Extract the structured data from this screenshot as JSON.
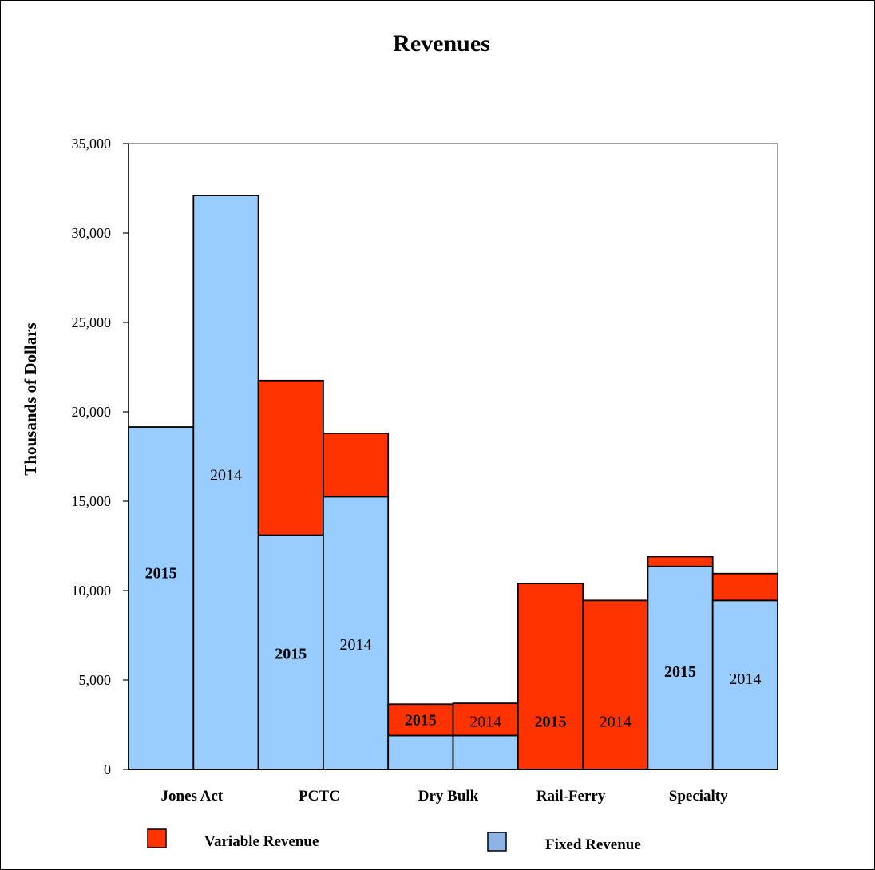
{
  "chart_data": {
    "type": "bar",
    "stacked": true,
    "title": "Revenues",
    "ylabel": "Thousands of Dollars",
    "ylim": [
      0,
      35000
    ],
    "yticks": [
      0,
      5000,
      10000,
      15000,
      20000,
      25000,
      30000,
      35000
    ],
    "ytick_labels": [
      "0",
      "5,000",
      "10,000",
      "15,000",
      "20,000",
      "25,000",
      "30,000",
      "35,000"
    ],
    "categories": [
      "Jones Act",
      "PCTC",
      "Dry Bulk",
      "Rail-Ferry",
      "Specialty"
    ],
    "bars": [
      {
        "category": "Jones Act",
        "year_label": "2015",
        "fixed": 19150,
        "variable": 0,
        "label_y": 11000,
        "bold": true
      },
      {
        "category": "Jones Act",
        "year_label": "2014",
        "fixed": 32100,
        "variable": 0,
        "label_y": 16500,
        "bold": false
      },
      {
        "category": "PCTC",
        "year_label": "2015",
        "fixed": 13100,
        "variable": 8650,
        "label_y": 6500,
        "bold": true
      },
      {
        "category": "PCTC",
        "year_label": "2014",
        "fixed": 15250,
        "variable": 3550,
        "label_y": 7000,
        "bold": false
      },
      {
        "category": "Dry Bulk",
        "year_label": "2015",
        "fixed": 1900,
        "variable": 1750,
        "label_y": 2800,
        "bold": true
      },
      {
        "category": "Dry Bulk",
        "year_label": "2014",
        "fixed": 1900,
        "variable": 1800,
        "label_y": 2700,
        "bold": false
      },
      {
        "category": "Rail-Ferry",
        "year_label": "2015",
        "fixed": 0,
        "variable": 10400,
        "label_y": 2700,
        "bold": true
      },
      {
        "category": "Rail-Ferry",
        "year_label": "2014",
        "fixed": 0,
        "variable": 9450,
        "label_y": 2700,
        "bold": false
      },
      {
        "category": "Specialty",
        "year_label": "2015",
        "fixed": 11350,
        "variable": 550,
        "label_y": 5500,
        "bold": true
      },
      {
        "category": "Specialty",
        "year_label": "2014",
        "fixed": 9450,
        "variable": 1500,
        "label_y": 5100,
        "bold": false
      }
    ],
    "legend": {
      "placement": "bottom",
      "entries": [
        {
          "name": "Variable Revenue",
          "color": "#FF3300"
        },
        {
          "name": "Fixed Revenue",
          "color": "#8EB4E3"
        }
      ]
    },
    "colors": {
      "fixed": "#99CCFF",
      "variable": "#FF3300"
    },
    "grid": false
  }
}
